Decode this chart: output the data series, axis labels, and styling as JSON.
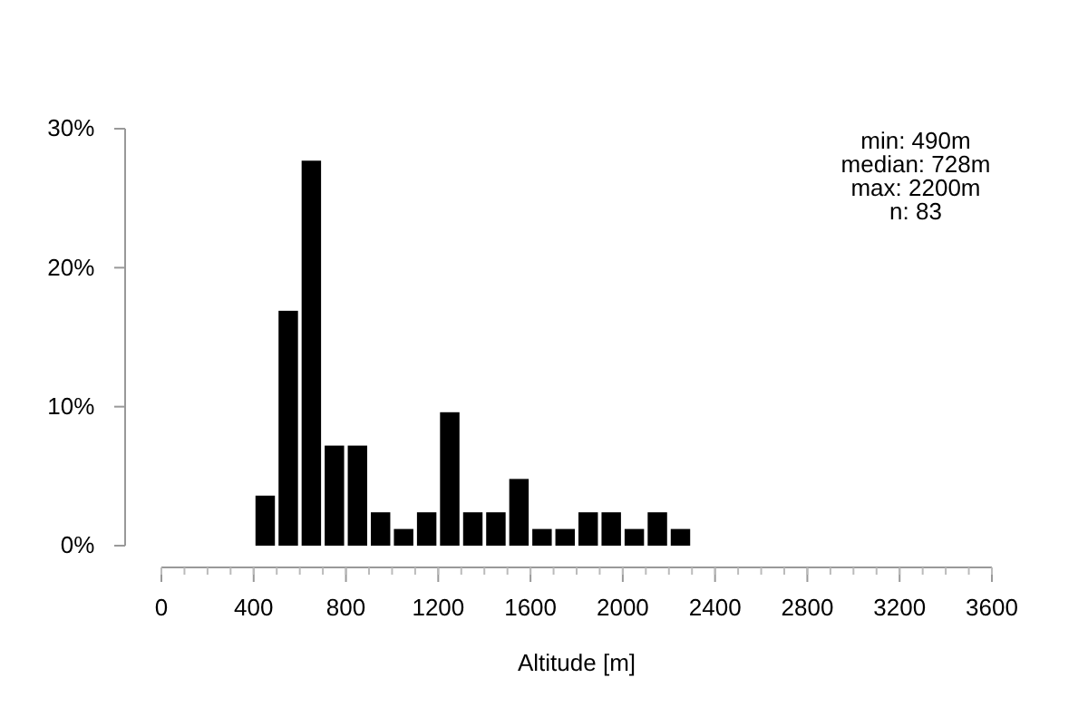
{
  "chart_data": {
    "type": "histogram",
    "xlabel": "Altitude [m]",
    "bins": [
      400,
      500,
      600,
      700,
      800,
      900,
      1000,
      1100,
      1200,
      1300,
      1400,
      1500,
      1600,
      1700,
      1800,
      1900,
      2000,
      2100,
      2200,
      2300
    ],
    "values": [
      3.6,
      16.9,
      27.7,
      7.2,
      7.2,
      2.4,
      1.2,
      2.4,
      9.6,
      2.4,
      2.4,
      4.8,
      1.2,
      1.2,
      2.4,
      2.4,
      1.2,
      2.4,
      1.2
    ],
    "color": "#000000",
    "xlim": [
      0,
      3600
    ],
    "xticks": [
      0,
      400,
      800,
      1200,
      1600,
      2000,
      2400,
      2800,
      3200,
      3600
    ],
    "ylim": [
      0,
      30
    ],
    "yticks": [
      {
        "value": 0,
        "label": "0%"
      },
      {
        "value": 10,
        "label": "10%"
      },
      {
        "value": 20,
        "label": "20%"
      },
      {
        "value": 30,
        "label": "30%"
      }
    ],
    "annotations": [
      "min: 490m",
      "median: 728m",
      "max: 2200m",
      "n:  83"
    ],
    "grid": false
  }
}
